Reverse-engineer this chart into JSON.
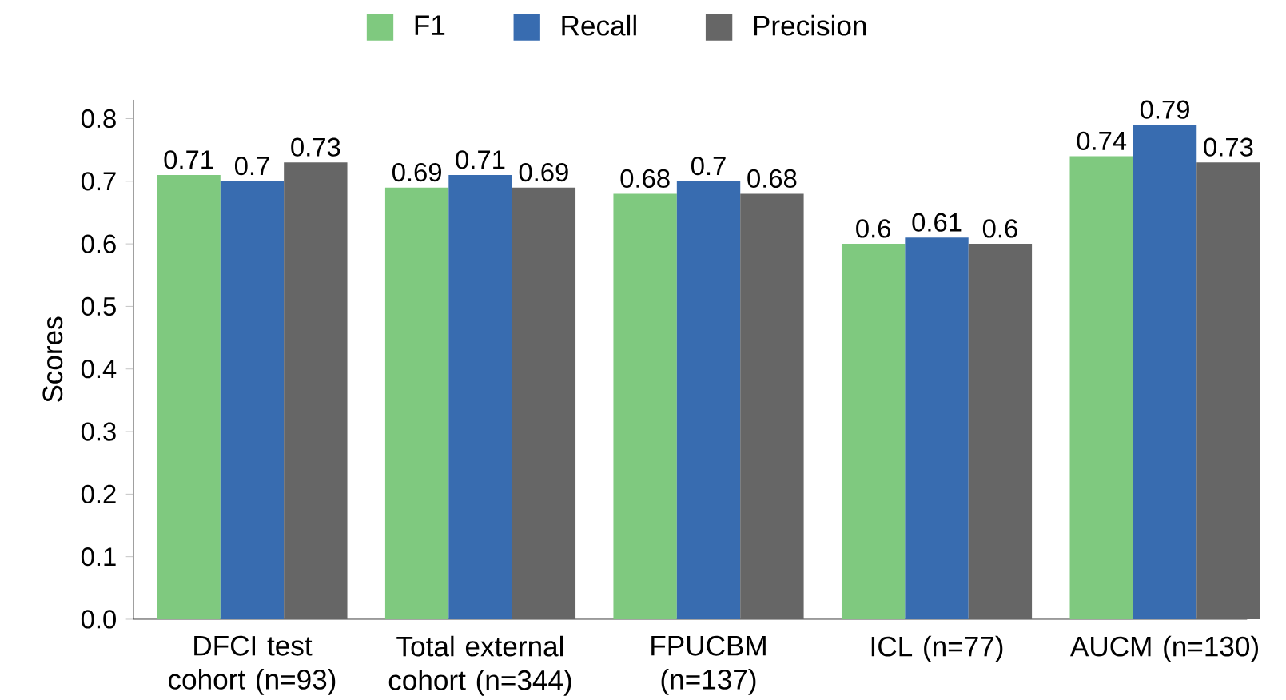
{
  "chart_data": {
    "type": "bar",
    "categories": [
      "DFCI test cohort (n=93)",
      "Total external cohort (n=344)",
      "FPUCBM (n=137)",
      "ICL (n=77)",
      "AUCM (n=130)"
    ],
    "series": [
      {
        "name": "F1",
        "color": "#7fc97f",
        "values": [
          0.71,
          0.69,
          0.68,
          0.6,
          0.74
        ]
      },
      {
        "name": "Recall",
        "color": "#386cb0",
        "values": [
          0.7,
          0.71,
          0.7,
          0.61,
          0.79
        ]
      },
      {
        "name": "Precision",
        "color": "#666666",
        "values": [
          0.73,
          0.69,
          0.68,
          0.6,
          0.73
        ]
      }
    ],
    "ylabel": "Scores",
    "ylim": [
      0,
      0.83
    ],
    "yticks": [
      {
        "value": 0,
        "label": "0.0"
      },
      0.1,
      0.2,
      0.3,
      0.4,
      0.5,
      0.6,
      0.7,
      0.8
    ],
    "data_labels": true,
    "legend": "top",
    "grid": false
  }
}
